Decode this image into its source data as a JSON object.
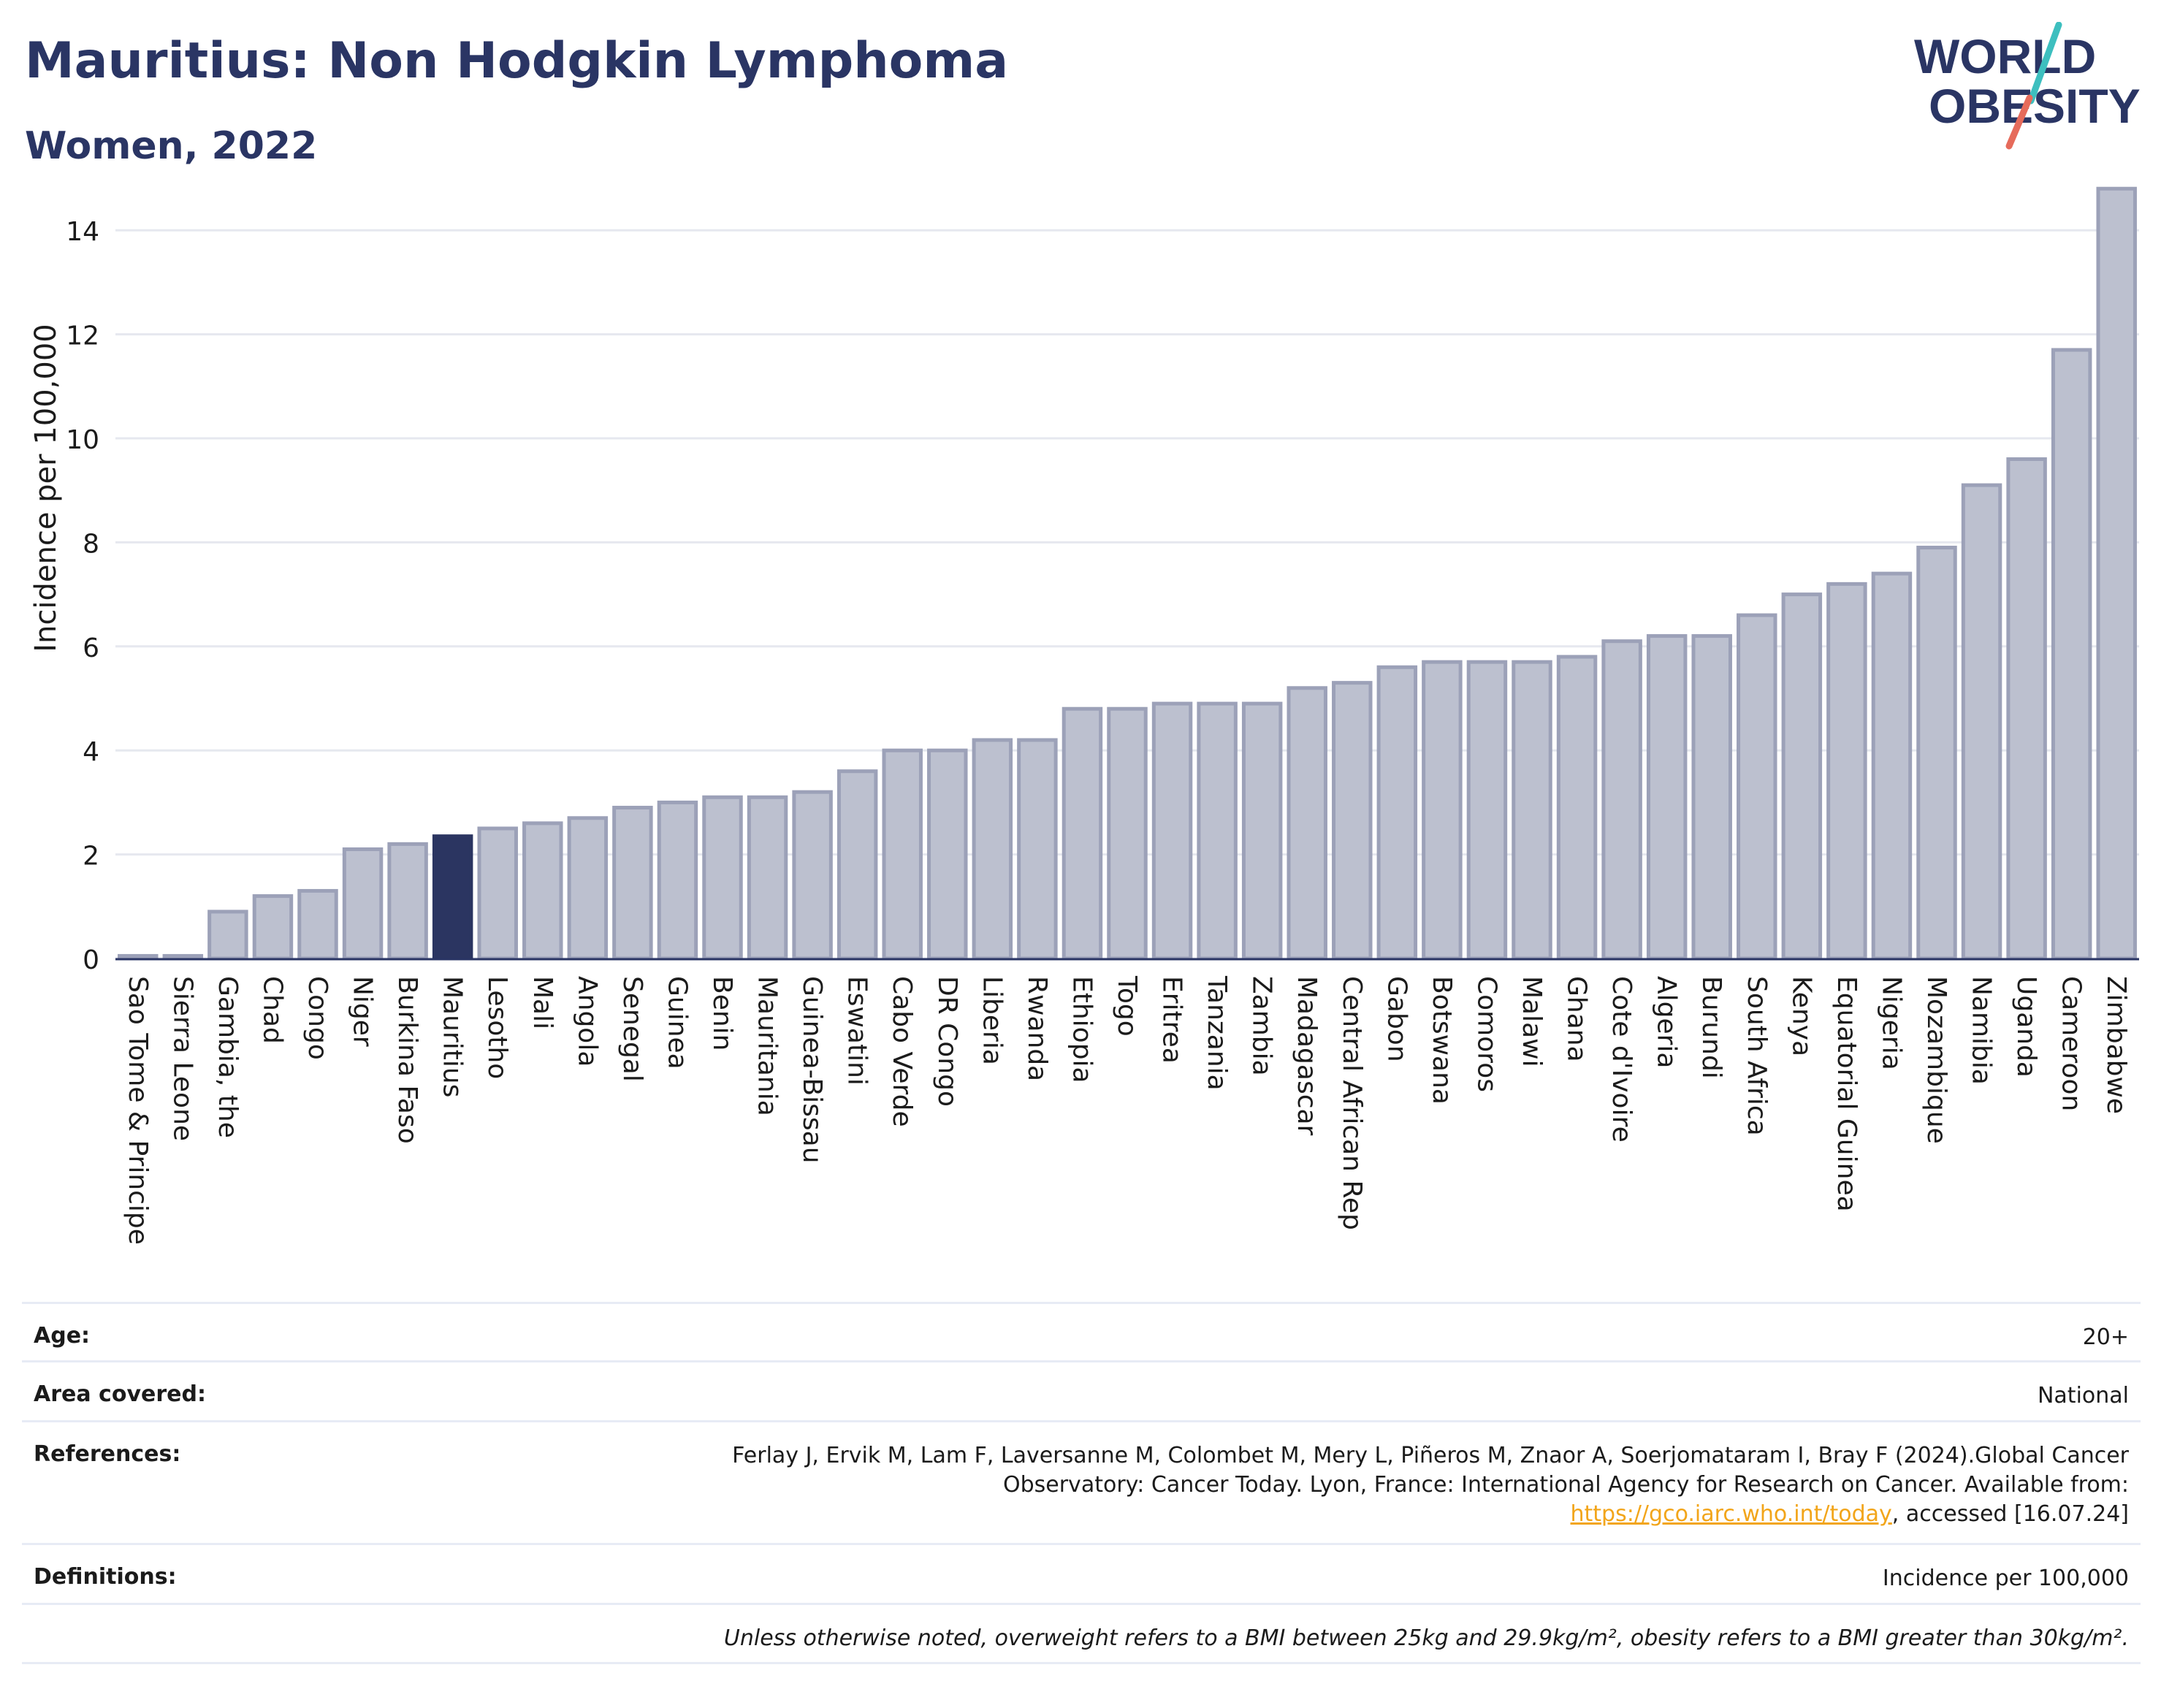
{
  "header": {
    "title": "Mauritius: Non Hodgkin Lymphoma",
    "subtitle": "Women, 2022"
  },
  "logo": {
    "line1": "WORLD",
    "line2": "OBESITY"
  },
  "colors": {
    "highlight": "#2b3561",
    "bar_fill": "#bcc0cf",
    "bar_stroke": "#9ca1b8",
    "grid": "#e6e8ef",
    "text": "#2a3564",
    "logo_teal": "#3dbfbf",
    "logo_coral": "#e66b5b"
  },
  "chart_data": {
    "type": "bar",
    "title": "Mauritius: Non Hodgkin Lymphoma",
    "subtitle": "Women, 2022",
    "xlabel": "",
    "ylabel": "Incidence per 100,000",
    "ylim": [
      0,
      15
    ],
    "yticks": [
      0,
      2,
      4,
      6,
      8,
      10,
      12,
      14
    ],
    "grid": true,
    "highlight": "Mauritius",
    "categories": [
      "Sao Tome & Principe",
      "Sierra Leone",
      "Gambia, the",
      "Chad",
      "Congo",
      "Niger",
      "Burkina Faso",
      "Mauritius",
      "Lesotho",
      "Mali",
      "Angola",
      "Senegal",
      "Guinea",
      "Benin",
      "Mauritania",
      "Guinea-Bissau",
      "Eswatini",
      "Cabo Verde",
      "DR Congo",
      "Liberia",
      "Rwanda",
      "Ethiopia",
      "Togo",
      "Eritrea",
      "Tanzania",
      "Zambia",
      "Madagascar",
      "Central African Rep",
      "Gabon",
      "Botswana",
      "Comoros",
      "Malawi",
      "Ghana",
      "Cote d'Ivoire",
      "Algeria",
      "Burundi",
      "South Africa",
      "Kenya",
      "Equatorial Guinea",
      "Nigeria",
      "Mozambique",
      "Namibia",
      "Uganda",
      "Cameroon",
      "Zimbabwe"
    ],
    "values": [
      0.05,
      0.05,
      0.9,
      1.2,
      1.3,
      2.1,
      2.2,
      2.35,
      2.5,
      2.6,
      2.7,
      2.9,
      3.0,
      3.1,
      3.1,
      3.2,
      3.6,
      4.0,
      4.0,
      4.2,
      4.2,
      4.8,
      4.8,
      4.9,
      4.9,
      4.9,
      5.2,
      5.3,
      5.6,
      5.7,
      5.7,
      5.7,
      5.8,
      6.1,
      6.2,
      6.2,
      6.6,
      7.0,
      7.2,
      7.4,
      7.9,
      9.1,
      9.6,
      11.7,
      14.8
    ]
  },
  "meta": {
    "age_label": "Age:",
    "age_value": "20+",
    "area_label": "Area covered:",
    "area_value": "National",
    "ref_label": "References:",
    "ref_text_1": "Ferlay J, Ervik M, Lam F, Laversanne M, Colombet M, Mery L, Piñeros M, Znaor A, Soerjomataram I, Bray F (2024).Global Cancer Observatory: Cancer Today. Lyon, France: International Agency for Research on Cancer. Available from: ",
    "ref_link": "https://gco.iarc.who.int/today",
    "ref_text_2": ", accessed [16.07.24]",
    "def_label": "Definitions:",
    "def_value": "Incidence per 100,000",
    "note": "Unless otherwise noted, overweight refers to a BMI between 25kg and 29.9kg/m², obesity refers to a BMI greater than 30kg/m²."
  }
}
